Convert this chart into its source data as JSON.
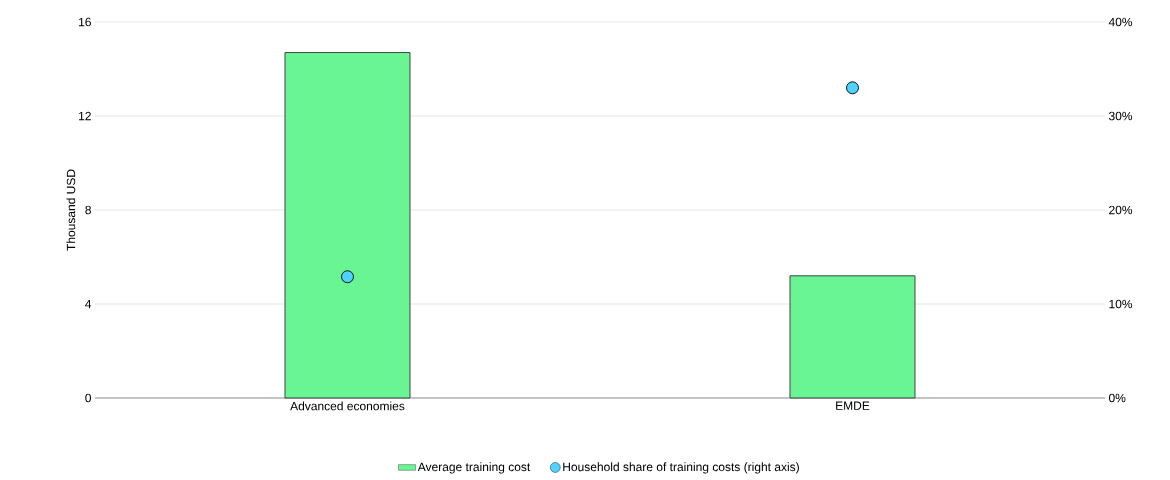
{
  "chart_data": {
    "type": "bar",
    "ylabel": "Thousand USD",
    "categories": [
      "Advanced economies",
      "EMDE"
    ],
    "series": [
      {
        "name": "Average training cost",
        "color": "#6af594",
        "values": [
          14.7,
          5.2
        ]
      },
      {
        "name": "Household share of training costs (right axis)",
        "type": "scatter",
        "axis": "y2",
        "color": "#4fd2ff",
        "x": [
          "Advanced economies",
          "EMDE"
        ],
        "values": [
          12.9,
          33.0
        ]
      }
    ],
    "ylim": [
      0,
      16
    ],
    "yticks": [
      0,
      4,
      8,
      12,
      16
    ],
    "y2lim": [
      0,
      40
    ],
    "y2ticks": [
      {
        "value": 0,
        "label": "0%"
      },
      {
        "value": 10,
        "label": "10%"
      },
      {
        "value": 20,
        "label": "20%"
      },
      {
        "value": 30,
        "label": "30%"
      },
      {
        "value": 40,
        "label": "40%"
      }
    ],
    "grid": "y",
    "legend": "bottom"
  }
}
